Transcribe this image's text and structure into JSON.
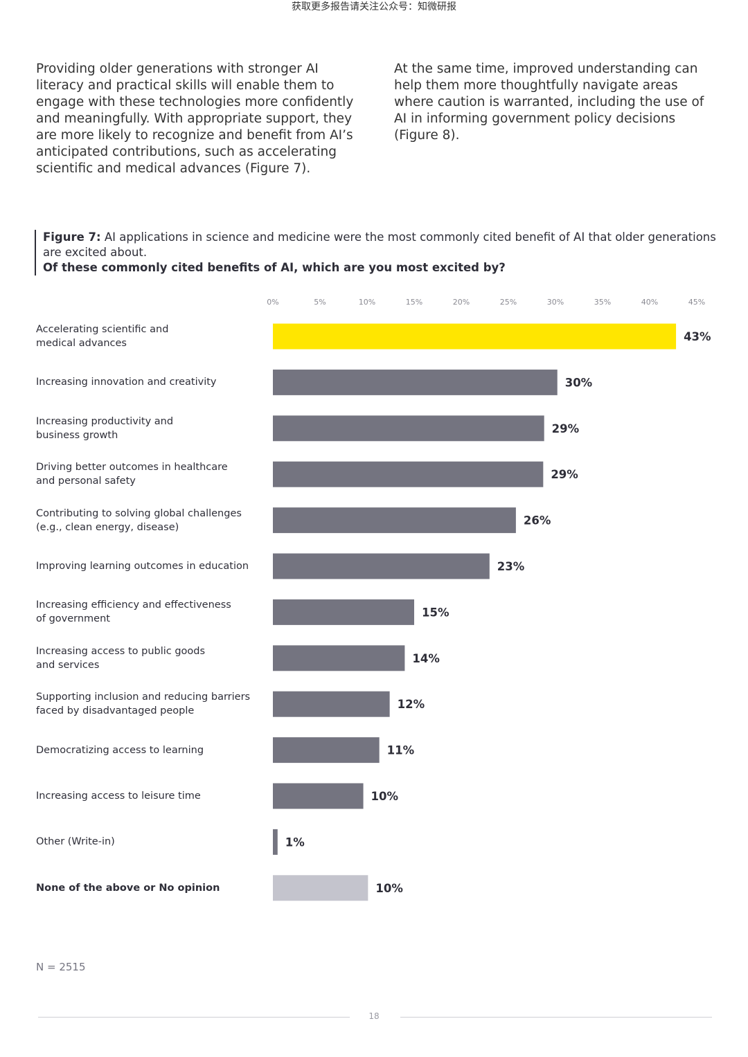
{
  "banner": "获取更多报告请关注公众号：知微研报",
  "intro": {
    "left": "Providing older generations with stronger AI literacy and practical skills will enable them to engage with these technologies more confidently and meaningfully. With appropriate support, they are more likely to recognize and benefit from AI’s anticipated contributions, such as accelerating scientific and medical advances (Figure 7).",
    "right": "At the same time, improved understanding can help them more thoughtfully navigate areas where caution is warranted, including the use of AI in informing government policy decisions (Figure 8)."
  },
  "figure": {
    "label": "Figure 7:",
    "caption": " AI applications in science and medicine were the most commonly cited benefit of AI that older generations are excited about.",
    "question": "Of these commonly cited benefits of AI, which are you most excited by?"
  },
  "chart_data": {
    "type": "bar",
    "orientation": "horizontal",
    "title": "Of these commonly cited benefits of AI, which are you most excited by?",
    "xlim": [
      0,
      45
    ],
    "ticks": [
      "0%",
      "5%",
      "10%",
      "15%",
      "20%",
      "25%",
      "30%",
      "35%",
      "40%",
      "45%"
    ],
    "categories": [
      [
        "Accelerating scientific and",
        "medical advances"
      ],
      [
        "Increasing innovation and creativity"
      ],
      [
        "Increasing productivity and",
        "business growth"
      ],
      [
        "Driving better outcomes in healthcare",
        "and personal safety"
      ],
      [
        "Contributing to solving global challenges",
        "(e.g., clean energy, disease)"
      ],
      [
        "Improving learning outcomes in education"
      ],
      [
        "Increasing efficiency and effectiveness",
        "of government"
      ],
      [
        "Increasing access to public goods",
        "and services"
      ],
      [
        "Supporting inclusion and reducing barriers",
        "faced by disadvantaged people"
      ],
      [
        "Democratizing access to learning"
      ],
      [
        "Increasing access to leisure time"
      ],
      [
        "Other (Write-in)"
      ],
      [
        "None of the above or No opinion"
      ]
    ],
    "values": [
      42.8,
      30.2,
      28.8,
      28.7,
      25.8,
      23.0,
      15.0,
      14.0,
      12.4,
      11.3,
      9.6,
      0.5,
      10.1
    ],
    "value_labels": [
      "43%",
      "30%",
      "29%",
      "29%",
      "26%",
      "23%",
      "15%",
      "14%",
      "12%",
      "11%",
      "10%",
      "1%",
      "10%"
    ],
    "highlight_index": 0,
    "muted_index": 12,
    "colors": {
      "highlight": "#ffe600",
      "default": "#747480",
      "muted": "#c4c4cd"
    }
  },
  "sample_size": "N = 2515",
  "page_number": "18"
}
